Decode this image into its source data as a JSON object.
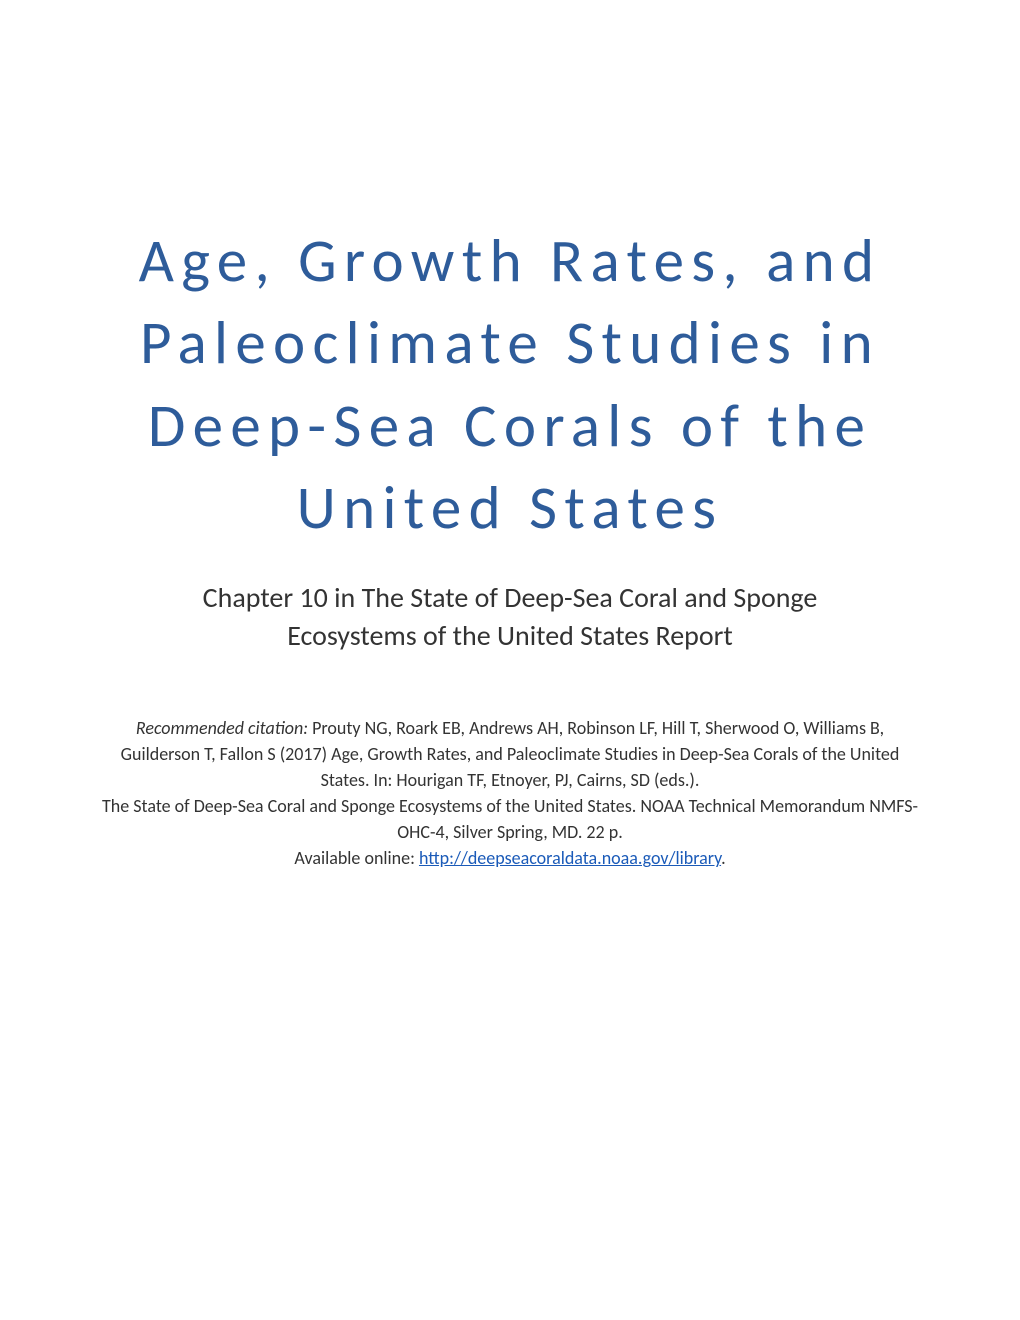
{
  "title": "Age, Growth Rates, and Paleoclimate Studies in Deep-Sea Corals of the United States",
  "subtitle": "Chapter 10 in The State of Deep-Sea Coral and Sponge Ecosystems of the United States Report",
  "citation": {
    "label": "Recommended citation: ",
    "text_part1": "Prouty NG, Roark EB, Andrews AH, Robinson LF, Hill T, Sherwood O, Williams B, Guilderson T, Fallon S (2017) Age, Growth Rates, and Paleoclimate Studies in Deep-Sea Corals of the United States. In: Hourigan TF, Etnoyer, PJ, Cairns, SD (eds.).",
    "text_part2": "The State of Deep-Sea Coral and Sponge Ecosystems of the United States. NOAA Technical Memorandum NMFS-OHC-4, Silver Spring, MD. 22 p.",
    "available_prefix": "Available online: ",
    "link_text": "http://deepseacoraldata.noaa.gov/library",
    "available_suffix": "."
  },
  "colors": {
    "title_color": "#2e5c9a",
    "body_text": "#333333",
    "link_color": "#1a5ab8",
    "background": "#ffffff"
  },
  "typography": {
    "title_fontsize": 61,
    "title_letter_spacing": "0.12em",
    "subtitle_fontsize": 28,
    "citation_fontsize": 18
  }
}
